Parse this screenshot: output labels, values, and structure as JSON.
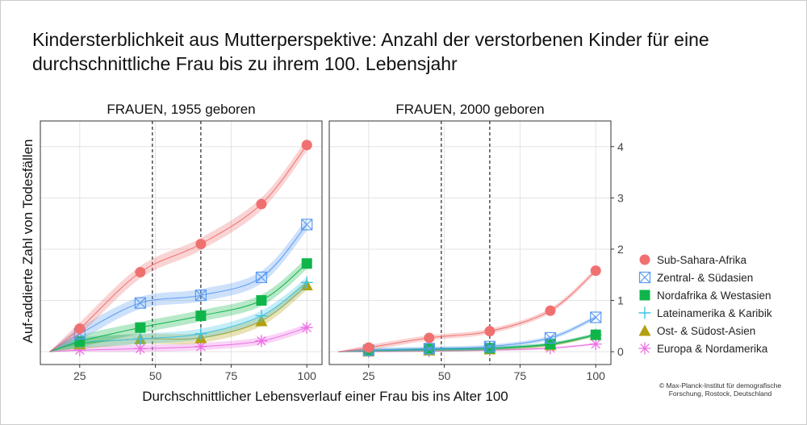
{
  "title": "Kindersterblichkeit aus Mutterperspektive: Anzahl der verstorbenen Kinder für eine durchschnittliche Frau bis zu ihrem 100. Lebensjahr",
  "copyright": "© Max-Planck-Institut für demografische Forschung, Rostock, Deutschland",
  "chart_data": {
    "type": "line",
    "xlabel": "Durchschnittlicher Lebensverlauf einer Frau bis ins Alter 100",
    "ylabel": "Auf-addierte Zahl von Todesfällen",
    "xlim": [
      12,
      105
    ],
    "ylim": [
      -0.25,
      4.5
    ],
    "x_ticks": [
      25,
      50,
      75,
      100
    ],
    "y_ticks": [
      0,
      1,
      2,
      3,
      4
    ],
    "vlines": [
      49,
      65
    ],
    "grid": true,
    "legend_position": "right",
    "legend": [
      {
        "name": "Sub-Sahara-Afrika",
        "color": "#f07070",
        "marker": "circle"
      },
      {
        "name": "Zentral- & Südasien",
        "color": "#5b9bf2",
        "marker": "square-x"
      },
      {
        "name": "Nordafrika & Westasien",
        "color": "#10b54a",
        "marker": "square"
      },
      {
        "name": "Lateinamerika & Karibik",
        "color": "#3ec4e6",
        "marker": "plus"
      },
      {
        "name": "Ost- & Südost-Asien",
        "color": "#b2a010",
        "marker": "triangle"
      },
      {
        "name": "Europa & Nordamerika",
        "color": "#ec6fe4",
        "marker": "asterisk"
      }
    ],
    "panels": [
      {
        "title": "FRAUEN, 1955 geboren",
        "x": [
          15,
          25,
          45,
          65,
          85,
          100
        ],
        "series": [
          {
            "name": "Sub-Sahara-Afrika",
            "values": [
              0,
              0.45,
              1.55,
              2.1,
              2.88,
              4.03
            ],
            "band": 0.12
          },
          {
            "name": "Zentral- & Südasien",
            "values": [
              0,
              0.35,
              0.95,
              1.1,
              1.45,
              2.48
            ],
            "band": 0.12
          },
          {
            "name": "Nordafrika & Westasien",
            "values": [
              0,
              0.2,
              0.47,
              0.7,
              1.0,
              1.72
            ],
            "band": 0.11
          },
          {
            "name": "Lateinamerika & Karibik",
            "values": [
              0,
              0.17,
              0.25,
              0.35,
              0.7,
              1.35
            ],
            "band": 0.1
          },
          {
            "name": "Ost- & Südost-Asien",
            "values": [
              0,
              0.15,
              0.25,
              0.27,
              0.6,
              1.3
            ],
            "band": 0.1
          },
          {
            "name": "Europa & Nordamerika",
            "values": [
              0,
              0.03,
              0.06,
              0.1,
              0.21,
              0.47
            ],
            "band": 0.07
          }
        ]
      },
      {
        "title": "FRAUEN, 2000 geboren",
        "x": [
          15,
          25,
          45,
          65,
          85,
          100
        ],
        "series": [
          {
            "name": "Sub-Sahara-Afrika",
            "values": [
              0,
              0.08,
              0.27,
              0.4,
              0.8,
              1.58
            ],
            "band": 0.05
          },
          {
            "name": "Zentral- & Südasien",
            "values": [
              0,
              0.03,
              0.06,
              0.1,
              0.27,
              0.67
            ],
            "band": 0.04
          },
          {
            "name": "Nordafrika & Westasien",
            "values": [
              0,
              0.02,
              0.05,
              0.07,
              0.15,
              0.33
            ],
            "band": 0.03
          },
          {
            "name": "Lateinamerika & Karibik",
            "values": [
              0,
              0.02,
              0.04,
              0.06,
              0.15,
              0.33
            ],
            "band": 0.03
          },
          {
            "name": "Ost- & Südost-Asien",
            "values": [
              0,
              0.01,
              0.03,
              0.05,
              0.13,
              0.33
            ],
            "band": 0.03
          },
          {
            "name": "Europa & Nordamerika",
            "values": [
              0,
              0.0,
              0.01,
              0.03,
              0.07,
              0.15
            ],
            "band": 0.02
          }
        ]
      }
    ]
  }
}
